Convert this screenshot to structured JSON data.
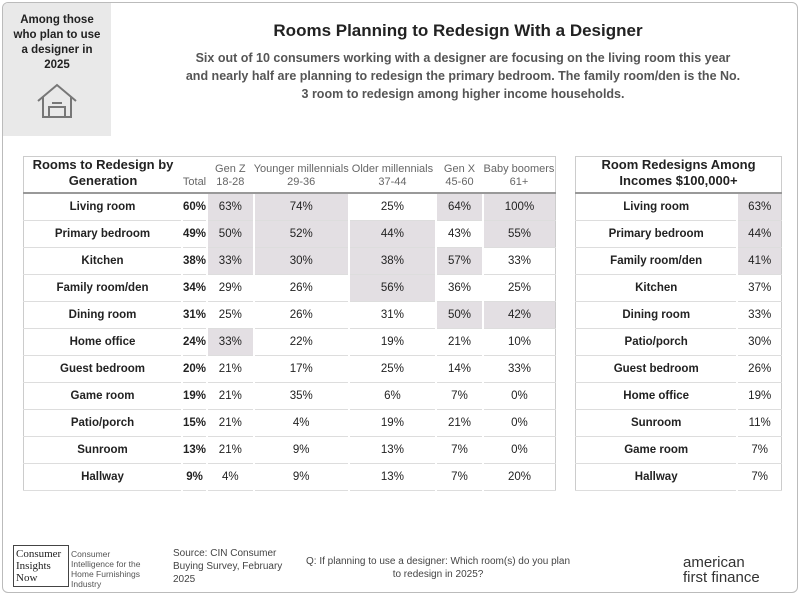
{
  "sidebar": {
    "text": "Among those who plan to use a designer in 2025"
  },
  "header": {
    "title": "Rooms Planning to Redesign With a Designer",
    "subtitle": "Six out of 10 consumers working with a designer are focusing on the living room this year and nearly half are planning to redesign the primary bedroom. The family room/den is the No. 3 room to redesign among higher income households."
  },
  "table": {
    "title": "Rooms to Redesign by Generation",
    "columns": [
      "Total",
      "Gen Z 18-28",
      "Younger millennials 29-36",
      "Older millennials 37-44",
      "Gen X 45-60",
      "Baby boomers 61+"
    ],
    "rows": [
      {
        "cells": [
          "Living room",
          "60%",
          "63%",
          "74%",
          "25%",
          "64%",
          "100%"
        ],
        "shaded": [
          2,
          3,
          5,
          6
        ]
      },
      {
        "cells": [
          "Primary bedroom",
          "49%",
          "50%",
          "52%",
          "44%",
          "43%",
          "55%"
        ],
        "shaded": [
          2,
          3,
          4,
          6
        ]
      },
      {
        "cells": [
          "Kitchen",
          "38%",
          "33%",
          "30%",
          "38%",
          "57%",
          "33%"
        ],
        "shaded": [
          2,
          3,
          4,
          5
        ]
      },
      {
        "cells": [
          "Family room/den",
          "34%",
          "29%",
          "26%",
          "56%",
          "36%",
          "25%"
        ],
        "shaded": [
          4
        ]
      },
      {
        "cells": [
          "Dining room",
          "31%",
          "25%",
          "26%",
          "31%",
          "50%",
          "42%"
        ],
        "shaded": [
          5,
          6
        ]
      },
      {
        "cells": [
          "Home office",
          "24%",
          "33%",
          "22%",
          "19%",
          "21%",
          "10%"
        ],
        "shaded": [
          2
        ]
      },
      {
        "cells": [
          "Guest bedroom",
          "20%",
          "21%",
          "17%",
          "25%",
          "14%",
          "33%"
        ],
        "shaded": []
      },
      {
        "cells": [
          "Game room",
          "19%",
          "21%",
          "35%",
          "6%",
          "7%",
          "0%"
        ],
        "shaded": []
      },
      {
        "cells": [
          "Patio/porch",
          "15%",
          "21%",
          "4%",
          "19%",
          "21%",
          "0%"
        ],
        "shaded": []
      },
      {
        "cells": [
          "Sunroom",
          "13%",
          "21%",
          "9%",
          "13%",
          "7%",
          "0%"
        ],
        "shaded": []
      },
      {
        "cells": [
          "Hallway",
          "9%",
          "4%",
          "9%",
          "13%",
          "7%",
          "20%"
        ],
        "shaded": []
      }
    ]
  },
  "income_table": {
    "title": "Room Redesigns Among Incomes $100,000+",
    "rows": [
      {
        "cells": [
          "Living room",
          "63%"
        ],
        "shaded": [
          1
        ]
      },
      {
        "cells": [
          "Primary bedroom",
          "44%"
        ],
        "shaded": [
          1
        ]
      },
      {
        "cells": [
          "Family room/den",
          "41%"
        ],
        "shaded": [
          1
        ]
      },
      {
        "cells": [
          "Kitchen",
          "37%"
        ],
        "shaded": []
      },
      {
        "cells": [
          "Dining room",
          "33%"
        ],
        "shaded": []
      },
      {
        "cells": [
          "Patio/porch",
          "30%"
        ],
        "shaded": []
      },
      {
        "cells": [
          "Guest bedroom",
          "26%"
        ],
        "shaded": []
      },
      {
        "cells": [
          "Home office",
          "19%"
        ],
        "shaded": []
      },
      {
        "cells": [
          "Sunroom",
          "11%"
        ],
        "shaded": []
      },
      {
        "cells": [
          "Game room",
          "7%"
        ],
        "shaded": []
      },
      {
        "cells": [
          "Hallway",
          "7%"
        ],
        "shaded": []
      }
    ]
  },
  "footer": {
    "logo": "Consumer Insights Now",
    "tagline": "Consumer Intelligence for the Home Furnishings Industry",
    "source": "Source: CIN Consumer Buying Survey, February 2025",
    "question": "Q: If planning to use a designer: Which room(s) do you plan to redesign in 2025?",
    "brand_top": "american",
    "brand_bottom": "first finance"
  }
}
